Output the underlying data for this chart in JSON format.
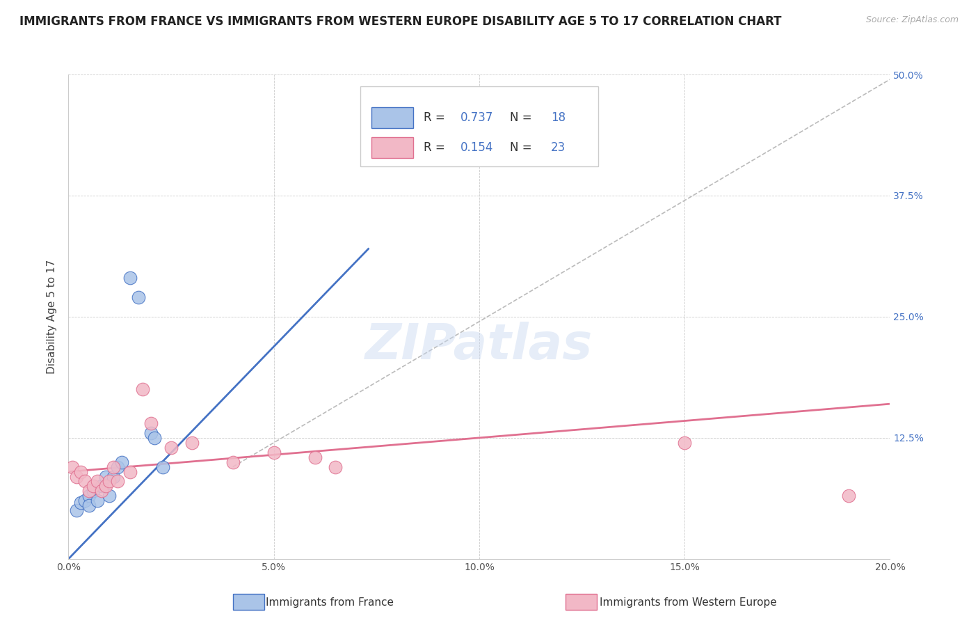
{
  "title": "IMMIGRANTS FROM FRANCE VS IMMIGRANTS FROM WESTERN EUROPE DISABILITY AGE 5 TO 17 CORRELATION CHART",
  "source": "Source: ZipAtlas.com",
  "ylabel": "Disability Age 5 to 17",
  "legend_label_1": "Immigrants from France",
  "legend_label_2": "Immigrants from Western Europe",
  "R1": 0.737,
  "N1": 18,
  "R2": 0.154,
  "N2": 23,
  "color_blue": "#aac4e8",
  "color_pink": "#f2b8c6",
  "color_blue_dark": "#4472c4",
  "color_pink_dark": "#e07090",
  "xlim": [
    0.0,
    0.2
  ],
  "ylim": [
    0.0,
    0.5
  ],
  "xticks": [
    0.0,
    0.05,
    0.1,
    0.15,
    0.2
  ],
  "yticks": [
    0.0,
    0.125,
    0.25,
    0.375,
    0.5
  ],
  "xtick_labels": [
    "0.0%",
    "5.0%",
    "10.0%",
    "15.0%",
    "20.0%"
  ],
  "ytick_labels": [
    "",
    "12.5%",
    "25.0%",
    "37.5%",
    "50.0%"
  ],
  "blue_scatter_x": [
    0.002,
    0.003,
    0.004,
    0.005,
    0.005,
    0.006,
    0.007,
    0.008,
    0.009,
    0.01,
    0.011,
    0.012,
    0.013,
    0.015,
    0.017,
    0.02,
    0.021,
    0.023
  ],
  "blue_scatter_y": [
    0.05,
    0.058,
    0.06,
    0.065,
    0.055,
    0.07,
    0.06,
    0.075,
    0.085,
    0.065,
    0.085,
    0.095,
    0.1,
    0.29,
    0.27,
    0.13,
    0.125,
    0.095
  ],
  "pink_scatter_x": [
    0.001,
    0.002,
    0.003,
    0.004,
    0.005,
    0.006,
    0.007,
    0.008,
    0.009,
    0.01,
    0.011,
    0.012,
    0.015,
    0.018,
    0.02,
    0.025,
    0.03,
    0.04,
    0.05,
    0.06,
    0.065,
    0.15,
    0.19
  ],
  "pink_scatter_y": [
    0.095,
    0.085,
    0.09,
    0.08,
    0.07,
    0.075,
    0.08,
    0.07,
    0.075,
    0.08,
    0.095,
    0.08,
    0.09,
    0.175,
    0.14,
    0.115,
    0.12,
    0.1,
    0.11,
    0.105,
    0.095,
    0.12,
    0.065
  ],
  "blue_line_x": [
    0.0,
    0.073
  ],
  "blue_line_y": [
    0.0,
    0.32
  ],
  "pink_line_x": [
    0.0,
    0.2
  ],
  "pink_line_y": [
    0.09,
    0.16
  ],
  "ref_line_x": [
    0.04,
    0.2
  ],
  "ref_line_y": [
    0.095,
    0.495
  ],
  "watermark": "ZIPatlas",
  "background_color": "#ffffff",
  "title_fontsize": 12,
  "axis_label_fontsize": 11,
  "tick_fontsize": 10,
  "legend_fontsize": 12
}
